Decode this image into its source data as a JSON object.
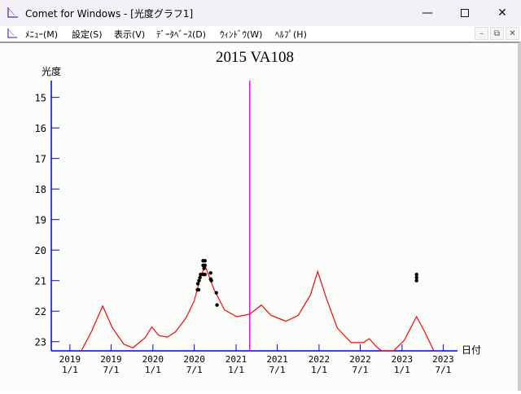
{
  "window": {
    "title": "Comet for Windows - [光度グラフ1]",
    "controls": [
      "minimize",
      "maximize",
      "close"
    ]
  },
  "menu": [
    {
      "label": "ﾒﾆｭｰ(M)"
    },
    {
      "label": "設定(S)"
    },
    {
      "label": "表示(V)"
    },
    {
      "label": "ﾃﾞｰﾀﾍﾞｰｽ(D)"
    },
    {
      "label": "ｳｨﾝﾄﾞｳ(W)"
    },
    {
      "label": "ﾍﾙﾌﾟ(H)"
    }
  ],
  "chart_data": {
    "type": "line",
    "title": "2015 VA108",
    "ylabel": "光度",
    "xlabel": "日付",
    "y_inverted": true,
    "ylim": [
      14.45,
      23.3
    ],
    "xlim": [
      "2018-10-11",
      "2023-09-02"
    ],
    "yticks": [
      15,
      16,
      17,
      18,
      19,
      20,
      21,
      22,
      23
    ],
    "xticks": [
      {
        "date": "2019-01-01",
        "l1": "2019",
        "l2": "1/1"
      },
      {
        "date": "2019-07-01",
        "l1": "2019",
        "l2": "7/1"
      },
      {
        "date": "2020-01-01",
        "l1": "2020",
        "l2": "1/1"
      },
      {
        "date": "2020-07-01",
        "l1": "2020",
        "l2": "7/1"
      },
      {
        "date": "2021-01-01",
        "l1": "2021",
        "l2": "1/1"
      },
      {
        "date": "2021-07-01",
        "l1": "2021",
        "l2": "7/1"
      },
      {
        "date": "2022-01-01",
        "l1": "2022",
        "l2": "1/1"
      },
      {
        "date": "2022-07-01",
        "l1": "2022",
        "l2": "7/1"
      },
      {
        "date": "2023-01-01",
        "l1": "2023",
        "l2": "1/1"
      },
      {
        "date": "2023-07-01",
        "l1": "2023",
        "l2": "7/1"
      }
    ],
    "current_date": "2021-03-02",
    "colors": {
      "predicted": "#ff0000",
      "observed": "#000000",
      "axis": "#0000ff",
      "current": "#ff00ff"
    },
    "predicted": [
      [
        "2019-02-20",
        23.3
      ],
      [
        "2019-04-05",
        22.68
      ],
      [
        "2019-05-25",
        21.83
      ],
      [
        "2019-07-07",
        22.55
      ],
      [
        "2019-08-26",
        23.08
      ],
      [
        "2019-10-05",
        23.2
      ],
      [
        "2019-11-28",
        22.87
      ],
      [
        "2019-12-27",
        22.52
      ],
      [
        "2020-01-28",
        22.8
      ],
      [
        "2020-03-04",
        22.85
      ],
      [
        "2020-04-09",
        22.68
      ],
      [
        "2020-05-26",
        22.22
      ],
      [
        "2020-07-01",
        21.66
      ],
      [
        "2020-07-26",
        20.95
      ],
      [
        "2020-08-17",
        20.5
      ],
      [
        "2020-09-25",
        21.27
      ],
      [
        "2020-11-11",
        21.96
      ],
      [
        "2021-01-04",
        22.18
      ],
      [
        "2021-03-02",
        22.1
      ],
      [
        "2021-04-22",
        21.8
      ],
      [
        "2021-06-04",
        22.14
      ],
      [
        "2021-08-08",
        22.33
      ],
      [
        "2021-10-01",
        22.14
      ],
      [
        "2021-11-24",
        21.47
      ],
      [
        "2021-12-26",
        20.7
      ],
      [
        "2022-02-03",
        21.6
      ],
      [
        "2022-03-22",
        22.55
      ],
      [
        "2022-05-22",
        23.03
      ],
      [
        "2022-07-15",
        23.03
      ],
      [
        "2022-08-10",
        22.9
      ],
      [
        "2022-09-07",
        23.14
      ],
      [
        "2022-10-03",
        23.3
      ],
      [
        "2022-11-25",
        23.3
      ],
      [
        "2023-01-11",
        22.95
      ],
      [
        "2023-03-06",
        22.18
      ],
      [
        "2023-04-11",
        22.68
      ],
      [
        "2023-05-21",
        23.3
      ]
    ],
    "observed": [
      [
        "2020-07-15",
        21.3
      ],
      [
        "2020-07-20",
        21.3
      ],
      [
        "2020-07-17",
        21.1
      ],
      [
        "2020-07-22",
        21.0
      ],
      [
        "2020-07-26",
        20.9
      ],
      [
        "2020-07-29",
        20.8
      ],
      [
        "2020-08-09",
        20.35
      ],
      [
        "2020-08-17",
        20.35
      ],
      [
        "2020-08-09",
        20.5
      ],
      [
        "2020-08-17",
        20.5
      ],
      [
        "2020-08-13",
        20.6
      ],
      [
        "2020-08-10",
        20.8
      ],
      [
        "2020-08-17",
        20.8
      ],
      [
        "2020-09-11",
        20.75
      ],
      [
        "2020-09-11",
        20.95
      ],
      [
        "2020-09-14",
        21.0
      ],
      [
        "2020-10-06",
        21.4
      ],
      [
        "2020-10-09",
        21.8
      ],
      [
        "2023-03-06",
        20.8
      ],
      [
        "2023-03-06",
        20.9
      ],
      [
        "2023-03-06",
        21.0
      ]
    ]
  }
}
